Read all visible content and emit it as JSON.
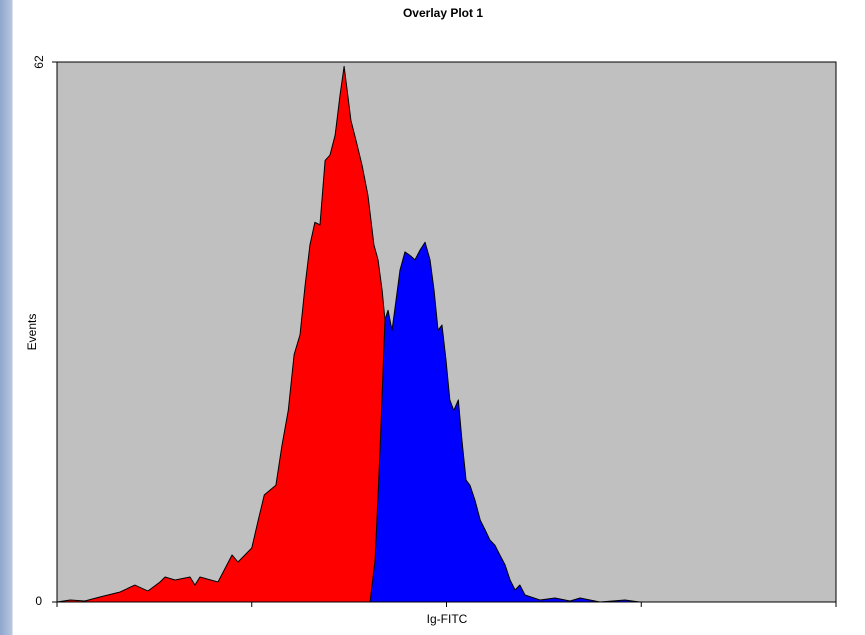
{
  "chart_data": {
    "type": "area",
    "title": "Overlay Plot 1",
    "x_label": "Ig-FITC",
    "y_label": "Events",
    "xscale": "log",
    "xlim": [
      1,
      10000
    ],
    "xticks": [
      1,
      10,
      100,
      1000,
      10000
    ],
    "ylim": [
      0,
      62
    ],
    "yticks": [
      0,
      62
    ],
    "background": "#c0c0c0",
    "series": [
      {
        "color": "#ff0000",
        "x": [
          1.0,
          1.17,
          1.39,
          1.66,
          2.11,
          2.51,
          2.93,
          3.38,
          3.59,
          4.04,
          4.82,
          5.11,
          5.42,
          6.71,
          7.92,
          8.5,
          10.0,
          10.8,
          11.6,
          13.3,
          14.3,
          15.4,
          16.5,
          17.7,
          18.8,
          19.9,
          21.1,
          22.4,
          23.8,
          25.2,
          26.8,
          28.4,
          29.8,
          30.8,
          32.3,
          34.3,
          36.8,
          39.5,
          42.4,
          44.5,
          46.7,
          48.9,
          57.7,
          73.1,
          92.6,
          117
        ],
        "values": [
          0,
          0.23,
          0.11,
          0.57,
          1.15,
          1.95,
          1.26,
          2.3,
          2.87,
          2.53,
          2.87,
          1.95,
          2.87,
          2.3,
          5.4,
          4.59,
          6.2,
          9.41,
          12.3,
          13.4,
          18.0,
          22.0,
          28.4,
          30.7,
          36.4,
          41.0,
          43.6,
          43.3,
          50.7,
          51.3,
          53.6,
          58.2,
          61.5,
          59.0,
          55.3,
          53.0,
          50.2,
          46.7,
          41.0,
          39.3,
          35.8,
          31.2,
          18.4,
          6.9,
          1.7,
          0
        ]
      },
      {
        "color": "#0000ff",
        "x": [
          40.5,
          43.0,
          45.6,
          48.3,
          50.1,
          52.5,
          55.1,
          57.7,
          61.2,
          64.9,
          68.9,
          73.1,
          77.6,
          82.3,
          86.3,
          90.5,
          94.8,
          99.4,
          104,
          109,
          115,
          120,
          126,
          132,
          140,
          149,
          158,
          167,
          177,
          188,
          200,
          212,
          225,
          238,
          253,
          302,
          361,
          431,
          485,
          614,
          825,
          985
        ],
        "values": [
          0,
          4.82,
          17.5,
          32.4,
          33.5,
          31.2,
          34.7,
          38.1,
          40.2,
          39.8,
          39.3,
          40.4,
          41.3,
          39.3,
          35.8,
          31.2,
          31.8,
          27.8,
          23.2,
          22.0,
          23.2,
          18.6,
          14.0,
          13.4,
          11.7,
          9.41,
          8.27,
          7.12,
          6.54,
          5.4,
          4.25,
          2.53,
          1.38,
          1.95,
          0.8,
          0.23,
          0.46,
          0.11,
          0.46,
          0,
          0.23,
          0
        ]
      }
    ]
  }
}
